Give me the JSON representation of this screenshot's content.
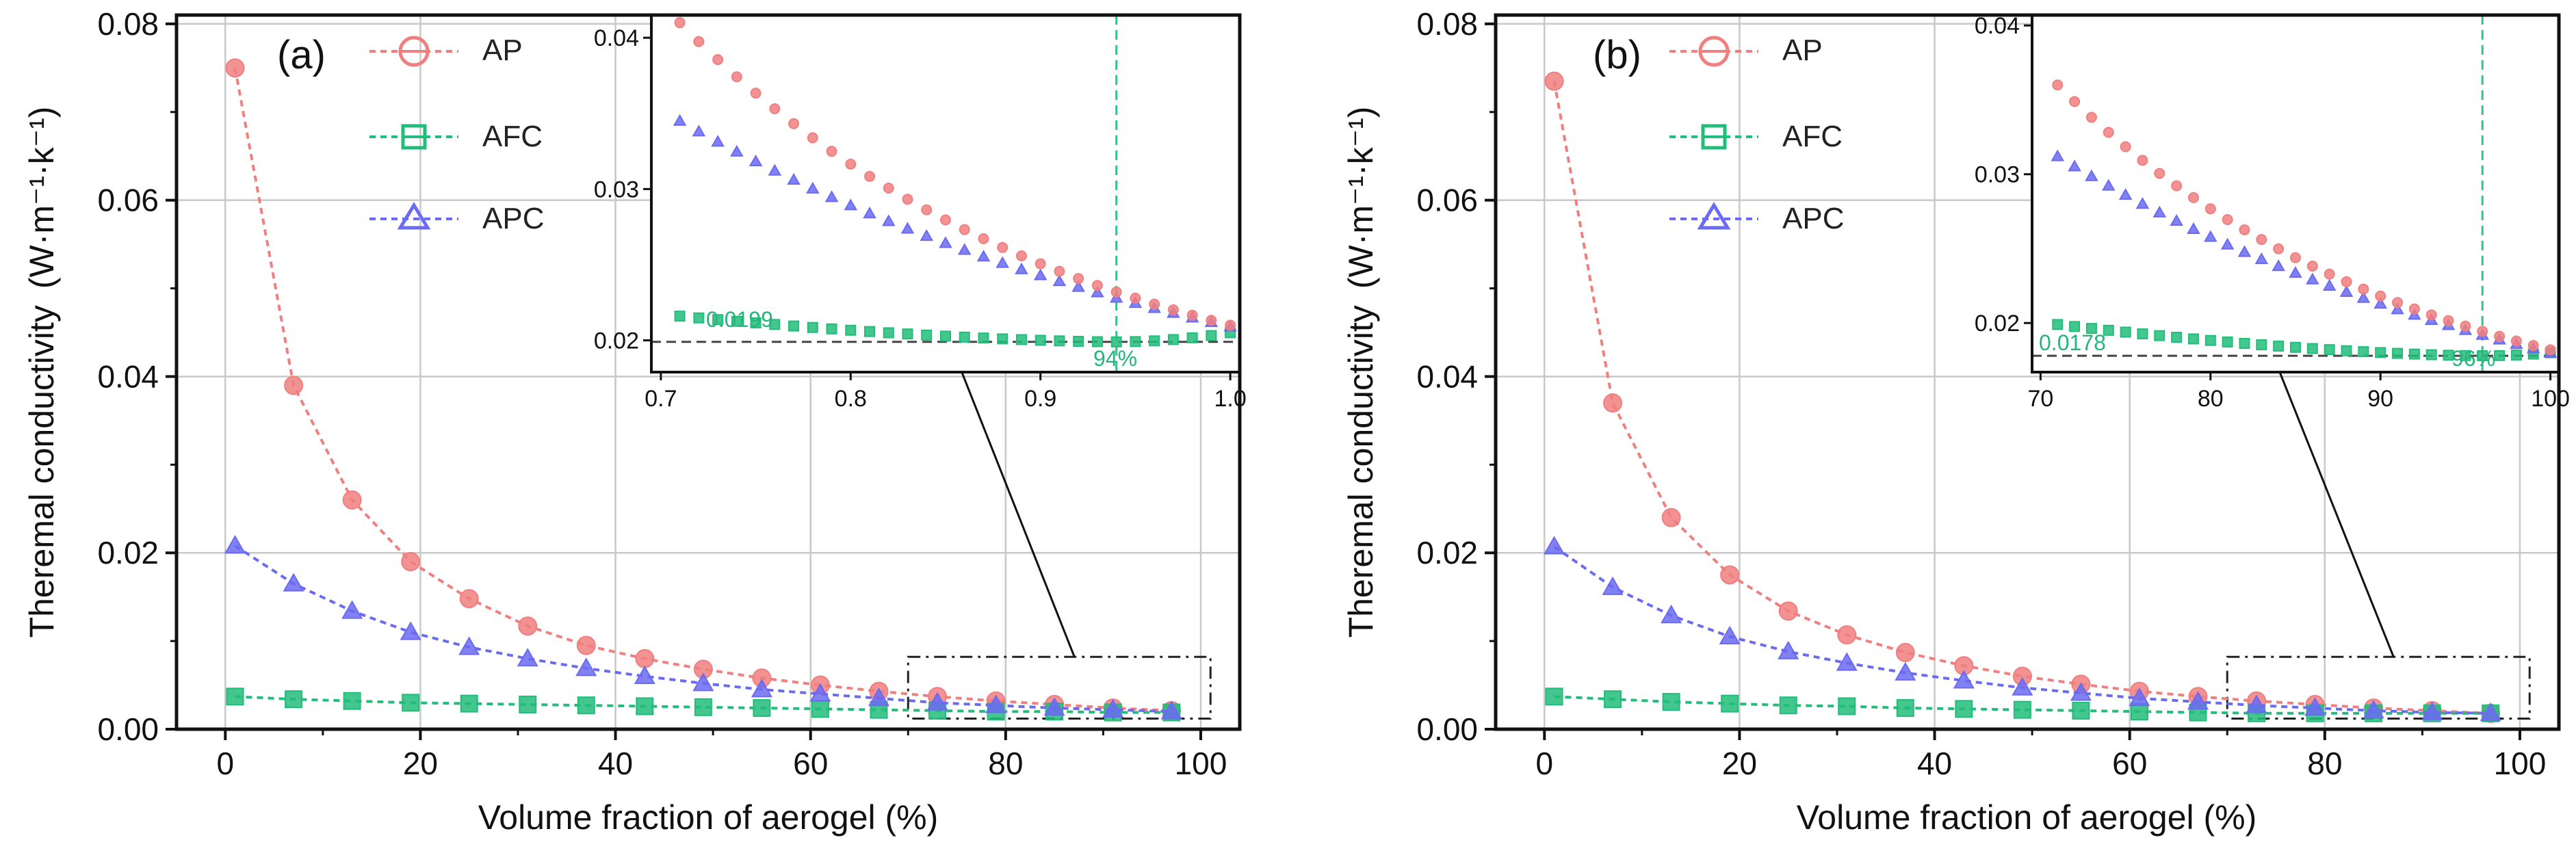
{
  "colors": {
    "AP": "#f07f7f",
    "AFC": "#22bd7a",
    "APC": "#6b6bf2",
    "refline": "#444444",
    "pctline": "#2fc48a",
    "pctlabel": "#25b57d"
  },
  "chart_data": [
    {
      "type": "line",
      "panel_label": "(a)",
      "xlabel": "Volume fraction of aerogel (%)",
      "ylabel": "Theremal conductivity",
      "yunit": "(W·m⁻¹·k⁻¹)",
      "xlim": [
        -5,
        104
      ],
      "ylim": [
        0,
        0.081
      ],
      "xticks": [
        0,
        20,
        40,
        60,
        80,
        100
      ],
      "yticks": [
        0.0,
        0.02,
        0.04,
        0.06,
        0.08
      ],
      "ytick_labels": [
        "0.00",
        "0.02",
        "0.04",
        "0.06",
        "0.08"
      ],
      "grid": true,
      "legend": [
        "AP",
        "AFC",
        "APC"
      ],
      "x": [
        1,
        7,
        13,
        19,
        25,
        31,
        37,
        43,
        49,
        55,
        61,
        67,
        73,
        79,
        85,
        91,
        97
      ],
      "series": [
        {
          "name": "AP",
          "values": [
            0.075,
            0.039,
            0.026,
            0.019,
            0.0148,
            0.0117,
            0.0095,
            0.008,
            0.0068,
            0.0058,
            0.005,
            0.0043,
            0.0037,
            0.0032,
            0.0028,
            0.0024,
            0.0021
          ]
        },
        {
          "name": "AFC",
          "values": [
            0.0037,
            0.0034,
            0.0032,
            0.003,
            0.0029,
            0.0028,
            0.0027,
            0.0026,
            0.0025,
            0.0024,
            0.0023,
            0.0022,
            0.0021,
            0.002,
            0.002,
            0.0019,
            0.0019
          ]
        },
        {
          "name": "APC",
          "values": [
            0.0208,
            0.0165,
            0.0134,
            0.011,
            0.0093,
            0.008,
            0.0069,
            0.006,
            0.0052,
            0.0045,
            0.004,
            0.0035,
            0.003,
            0.0027,
            0.0024,
            0.0022,
            0.002
          ]
        }
      ],
      "zoom_box": {
        "x": [
          70,
          101
        ],
        "y": [
          0.0012,
          0.0082
        ]
      },
      "inset": {
        "xlim": [
          0.695,
          1.005
        ],
        "ylim": [
          0.0179,
          0.0415
        ],
        "xticks": [
          0.7,
          0.8,
          0.9,
          1.0
        ],
        "xtick_labels": [
          "0.7",
          "0.8",
          "0.9",
          "1.0"
        ],
        "yticks": [
          0.02,
          0.03,
          0.04
        ],
        "ytick_labels": [
          "0.02",
          "0.03",
          "0.04"
        ],
        "x_start": 0.71,
        "x_end": 1.0,
        "AP": {
          "start": 0.041,
          "end": 0.021
        },
        "APC": {
          "start": 0.0345,
          "end": 0.0209
        },
        "AFC": {
          "start": 0.0216,
          "min": 0.0199,
          "min_x": 0.94,
          "end": 0.0205
        },
        "ref_value": 0.0199,
        "ref_label": "0.0199",
        "vline_x": 0.94,
        "vline_label": "94%"
      }
    },
    {
      "type": "line",
      "panel_label": "(b)",
      "xlabel": "Volume fraction of aerogel (%)",
      "ylabel": "Theremal conductivity",
      "yunit": "(W·m⁻¹·k⁻¹)",
      "xlim": [
        -5,
        104
      ],
      "ylim": [
        0,
        0.081
      ],
      "xticks": [
        0,
        20,
        40,
        60,
        80,
        100
      ],
      "yticks": [
        0.0,
        0.02,
        0.04,
        0.06,
        0.08
      ],
      "ytick_labels": [
        "0.00",
        "0.02",
        "0.04",
        "0.06",
        "0.08"
      ],
      "grid": true,
      "legend": [
        "AP",
        "AFC",
        "APC"
      ],
      "x": [
        1,
        7,
        13,
        19,
        25,
        31,
        37,
        43,
        49,
        55,
        61,
        67,
        73,
        79,
        85,
        91,
        97
      ],
      "series": [
        {
          "name": "AP",
          "values": [
            0.0735,
            0.037,
            0.024,
            0.0175,
            0.0134,
            0.0107,
            0.0087,
            0.0072,
            0.006,
            0.0051,
            0.0043,
            0.0037,
            0.0032,
            0.0028,
            0.0024,
            0.0021,
            0.0018
          ]
        },
        {
          "name": "AFC",
          "values": [
            0.0037,
            0.0034,
            0.0031,
            0.0029,
            0.0027,
            0.0026,
            0.0024,
            0.0023,
            0.0022,
            0.0021,
            0.002,
            0.0019,
            0.0018,
            0.0018,
            0.0018,
            0.0018,
            0.0018
          ]
        },
        {
          "name": "APC",
          "values": [
            0.0207,
            0.0161,
            0.0129,
            0.0105,
            0.0088,
            0.0075,
            0.0064,
            0.0055,
            0.0047,
            0.0041,
            0.0035,
            0.0031,
            0.0027,
            0.0024,
            0.0021,
            0.0019,
            0.0018
          ]
        }
      ],
      "zoom_box": {
        "x": [
          70,
          101
        ],
        "y": [
          0.0012,
          0.0082
        ]
      },
      "inset": {
        "xlim": [
          69.5,
          100.5
        ],
        "ylim": [
          0.0167,
          0.0407
        ],
        "xticks": [
          70,
          80,
          90,
          100
        ],
        "xtick_labels": [
          "70",
          "80",
          "90",
          "100"
        ],
        "yticks": [
          0.02,
          0.03,
          0.04
        ],
        "ytick_labels": [
          "0.02",
          "0.03",
          "0.04"
        ],
        "x_start": 71,
        "x_end": 100,
        "AP": {
          "start": 0.036,
          "end": 0.0182
        },
        "APC": {
          "start": 0.0312,
          "end": 0.018
        },
        "AFC": {
          "start": 0.0199,
          "min": 0.0178,
          "min_x": 96,
          "end": 0.018
        },
        "ref_value": 0.0178,
        "ref_label": "0.0178",
        "vline_x": 96,
        "vline_label": "96%"
      }
    }
  ]
}
